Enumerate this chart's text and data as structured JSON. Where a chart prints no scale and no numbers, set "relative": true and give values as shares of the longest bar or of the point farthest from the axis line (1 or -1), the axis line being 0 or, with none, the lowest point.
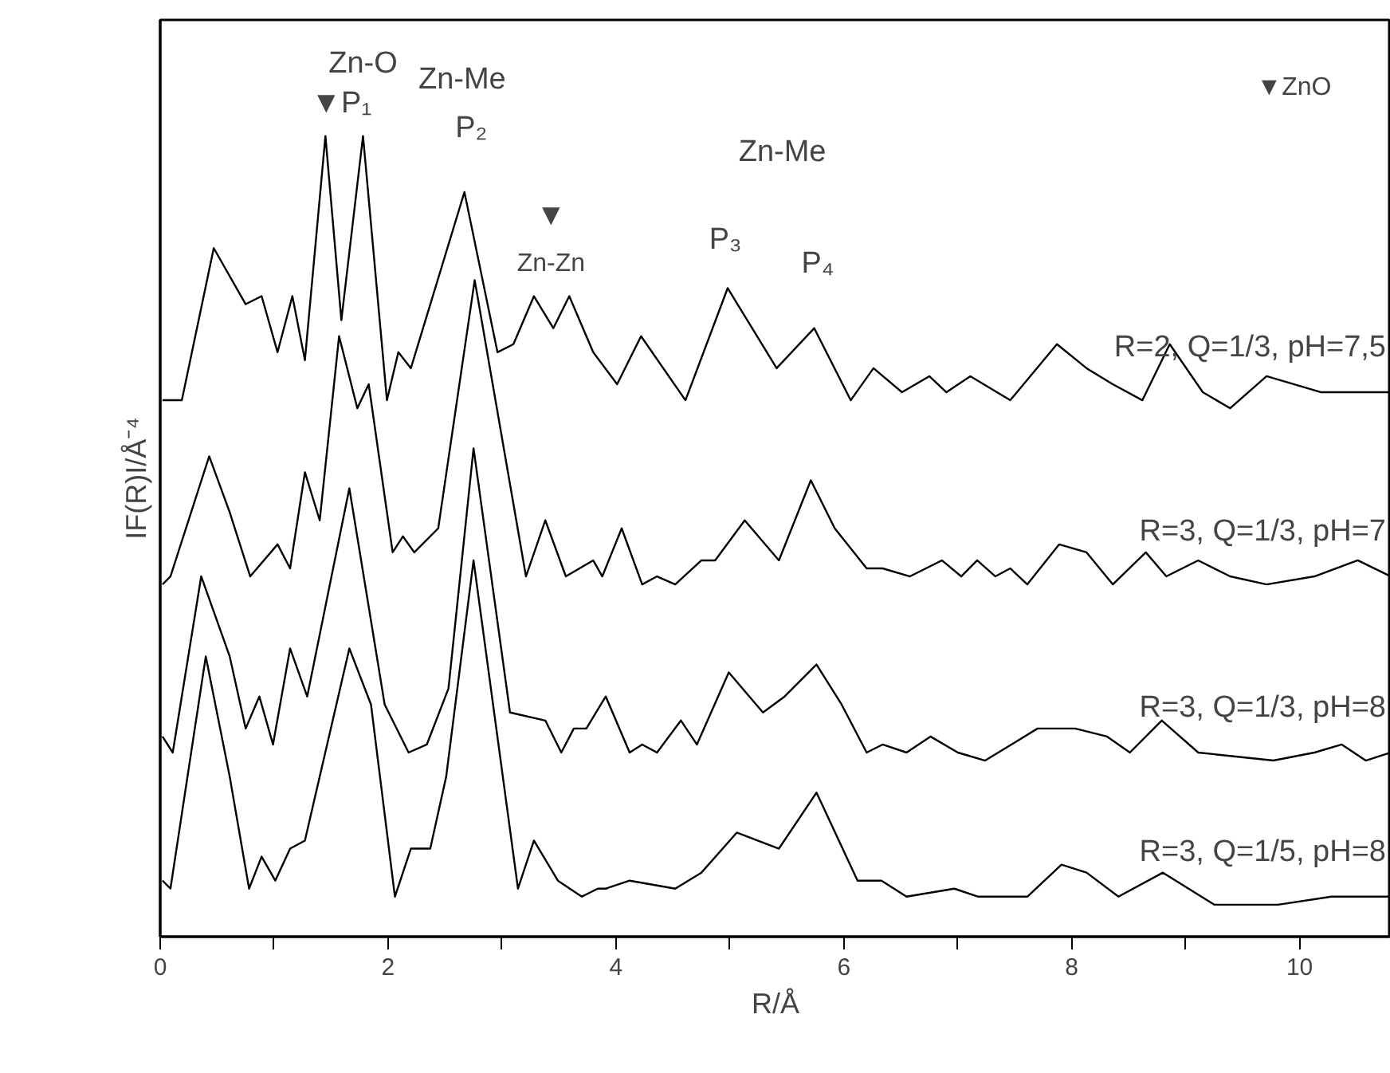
{
  "chart_data": {
    "type": "line",
    "xlabel": "R/Å",
    "ylabel": "IF(R)I/Å⁻⁴",
    "relative": true,
    "xlim": [
      0,
      10.8
    ],
    "xticks": [
      0,
      {
        "value": 1,
        "label": null
      },
      2,
      {
        "value": 3,
        "label": null
      },
      4,
      {
        "value": 5,
        "label": null
      },
      6,
      {
        "value": 7,
        "label": null
      },
      8,
      {
        "value": 9,
        "label": null
      },
      10
    ],
    "series": [
      {
        "name": "R=2, Q=1/3, pH=7,5",
        "color": "#000000",
        "x": [
          0.02,
          0.19,
          0.47,
          0.75,
          0.89,
          1.03,
          1.16,
          1.27,
          1.45,
          1.59,
          1.78,
          1.99,
          2.09,
          2.2,
          2.67,
          2.96,
          3.1,
          3.28,
          3.45,
          3.59,
          3.8,
          4.01,
          4.22,
          4.61,
          4.98,
          5.41,
          5.74,
          6.06,
          6.26,
          6.51,
          6.75,
          6.9,
          7.11,
          7.46,
          7.87,
          8.13,
          8.36,
          8.62,
          8.86,
          9.15,
          9.39,
          9.71,
          10.19,
          10.8
        ],
        "values": [
          0.67,
          0.67,
          0.86,
          0.79,
          0.8,
          0.73,
          0.8,
          0.72,
          1.0,
          0.77,
          1.0,
          0.67,
          0.73,
          0.71,
          0.93,
          0.73,
          0.74,
          0.8,
          0.76,
          0.8,
          0.73,
          0.69,
          0.75,
          0.67,
          0.81,
          0.71,
          0.76,
          0.67,
          0.71,
          0.68,
          0.7,
          0.68,
          0.7,
          0.67,
          0.74,
          0.71,
          0.69,
          0.67,
          0.74,
          0.68,
          0.66,
          0.7,
          0.68,
          0.68
        ]
      },
      {
        "name": "R=3, Q=1/3, pH=7",
        "color": "#000000",
        "x": [
          0.02,
          0.09,
          0.43,
          0.61,
          0.79,
          1.03,
          1.14,
          1.27,
          1.4,
          1.57,
          1.73,
          1.83,
          2.04,
          2.13,
          2.23,
          2.44,
          2.76,
          3.21,
          3.38,
          3.56,
          3.8,
          3.88,
          4.05,
          4.23,
          4.36,
          4.52,
          4.75,
          4.87,
          5.13,
          5.43,
          5.71,
          5.92,
          6.2,
          6.34,
          6.58,
          6.86,
          7.03,
          7.17,
          7.33,
          7.46,
          7.61,
          7.89,
          8.13,
          8.36,
          8.65,
          8.83,
          9.11,
          9.39,
          9.71,
          10.13,
          10.51,
          10.8
        ],
        "values": [
          0.44,
          0.45,
          0.6,
          0.53,
          0.45,
          0.49,
          0.46,
          0.58,
          0.52,
          0.75,
          0.66,
          0.69,
          0.48,
          0.5,
          0.48,
          0.51,
          0.82,
          0.45,
          0.52,
          0.45,
          0.47,
          0.45,
          0.51,
          0.44,
          0.45,
          0.44,
          0.47,
          0.47,
          0.52,
          0.47,
          0.57,
          0.51,
          0.46,
          0.46,
          0.45,
          0.47,
          0.45,
          0.47,
          0.45,
          0.46,
          0.44,
          0.49,
          0.48,
          0.44,
          0.48,
          0.45,
          0.47,
          0.45,
          0.44,
          0.45,
          0.47,
          0.45
        ]
      },
      {
        "name": "R=3, Q=1/3, pH=8",
        "color": "#000000",
        "x": [
          0.02,
          0.11,
          0.36,
          0.61,
          0.75,
          0.87,
          0.99,
          1.14,
          1.29,
          1.66,
          1.97,
          2.18,
          2.34,
          2.53,
          2.75,
          3.07,
          3.38,
          3.52,
          3.63,
          3.74,
          3.91,
          4.12,
          4.23,
          4.36,
          4.57,
          4.71,
          4.99,
          5.29,
          5.48,
          5.76,
          5.98,
          6.2,
          6.34,
          6.55,
          6.76,
          7.0,
          7.24,
          7.7,
          8.03,
          8.31,
          8.51,
          8.79,
          9.11,
          9.77,
          10.13,
          10.37,
          10.58,
          10.8
        ],
        "values": [
          0.25,
          0.23,
          0.45,
          0.35,
          0.26,
          0.3,
          0.24,
          0.36,
          0.3,
          0.56,
          0.29,
          0.23,
          0.24,
          0.31,
          0.61,
          0.28,
          0.27,
          0.23,
          0.26,
          0.26,
          0.3,
          0.23,
          0.24,
          0.23,
          0.27,
          0.24,
          0.33,
          0.28,
          0.3,
          0.34,
          0.29,
          0.23,
          0.24,
          0.23,
          0.25,
          0.23,
          0.22,
          0.26,
          0.26,
          0.25,
          0.23,
          0.27,
          0.23,
          0.22,
          0.23,
          0.24,
          0.22,
          0.23
        ]
      },
      {
        "name": "R=3, Q=1/5, pH=8",
        "color": "#000000",
        "x": [
          0.02,
          0.09,
          0.4,
          0.61,
          0.78,
          0.89,
          1.01,
          1.14,
          1.27,
          1.66,
          1.85,
          2.06,
          2.2,
          2.37,
          2.51,
          2.75,
          3.14,
          3.28,
          3.49,
          3.7,
          3.84,
          3.91,
          4.12,
          4.52,
          4.75,
          5.06,
          5.43,
          5.76,
          6.12,
          6.33,
          6.55,
          6.97,
          7.18,
          7.61,
          7.91,
          8.13,
          8.41,
          8.8,
          9.25,
          9.81,
          10.28,
          10.8
        ],
        "values": [
          0.07,
          0.06,
          0.35,
          0.2,
          0.06,
          0.1,
          0.07,
          0.11,
          0.12,
          0.36,
          0.29,
          0.05,
          0.11,
          0.11,
          0.2,
          0.47,
          0.06,
          0.12,
          0.07,
          0.05,
          0.06,
          0.06,
          0.07,
          0.06,
          0.08,
          0.13,
          0.11,
          0.18,
          0.07,
          0.07,
          0.05,
          0.06,
          0.05,
          0.05,
          0.09,
          0.08,
          0.05,
          0.08,
          0.04,
          0.04,
          0.05,
          0.05
        ]
      }
    ],
    "annotations": [
      "Zn-O",
      "▼P₁",
      "Zn-Me",
      "P₂",
      "▼",
      "Zn-Zn",
      "Zn-Me",
      "P₃",
      "P₄",
      "▼ZnO"
    ]
  }
}
